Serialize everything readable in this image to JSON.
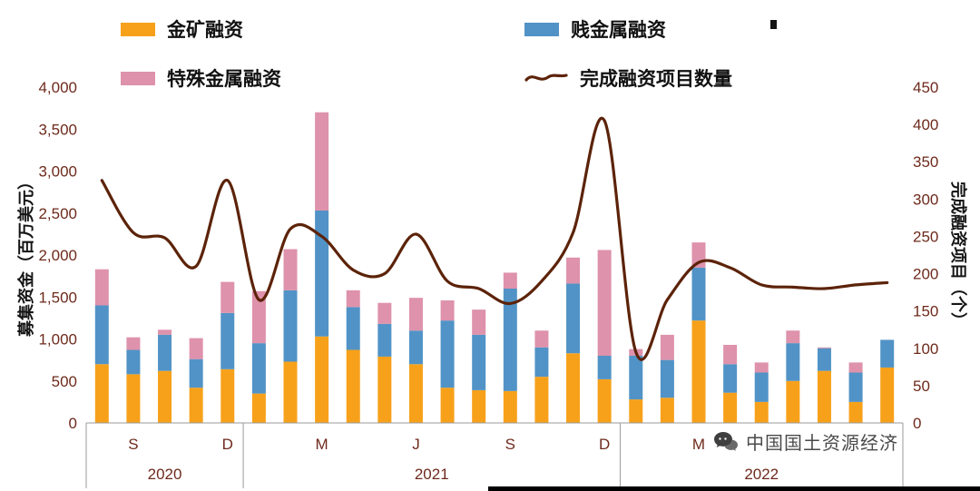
{
  "colors": {
    "gold": "#F7A11A",
    "base_metal": "#5193C6",
    "special_metal": "#DE92AC",
    "line": "#5C2309",
    "tick_text": "#6E2A1C",
    "axis_line": "#9a9a9a",
    "legend_text": "#111111",
    "watermark_text": "#4a4a4a"
  },
  "legend": [
    {
      "label": "金矿融资",
      "color": "#F7A11A",
      "type": "box"
    },
    {
      "label": "贱金属融资",
      "color": "#5193C6",
      "type": "box"
    },
    {
      "label": "特殊金属融资",
      "color": "#DE92AC",
      "type": "box"
    },
    {
      "label": "完成融资项目数量",
      "color": "#5C2309",
      "type": "line"
    }
  ],
  "watermark": {
    "text": "中国国土资源经济"
  },
  "chart_data": {
    "type": "bar+line",
    "x": [
      "2020-08",
      "2020-09",
      "2020-10",
      "2020-11",
      "2020-12",
      "2021-01",
      "2021-02",
      "2021-03",
      "2021-04",
      "2021-05",
      "2021-06",
      "2021-07",
      "2021-08",
      "2021-09",
      "2021-10",
      "2021-11",
      "2021-12",
      "2022-01",
      "2022-02",
      "2022-03",
      "2022-04",
      "2022-05",
      "2022-06",
      "2022-07",
      "2022-08",
      "2022-09"
    ],
    "month_labels": [
      {
        "index": 1,
        "label": "S"
      },
      {
        "index": 4,
        "label": "D"
      },
      {
        "index": 7,
        "label": "M"
      },
      {
        "index": 10,
        "label": "J"
      },
      {
        "index": 13,
        "label": "S"
      },
      {
        "index": 16,
        "label": "D"
      },
      {
        "index": 19,
        "label": "M"
      }
    ],
    "year_groups": [
      {
        "label": "2020",
        "start": 0,
        "end": 4
      },
      {
        "label": "2021",
        "start": 5,
        "end": 16
      },
      {
        "label": "2022",
        "start": 17,
        "end": 25
      }
    ],
    "series": [
      {
        "name": "金矿融资",
        "type": "bar",
        "color": "#F7A11A",
        "values": [
          700,
          580,
          620,
          420,
          640,
          350,
          730,
          1030,
          870,
          790,
          700,
          420,
          390,
          380,
          550,
          830,
          520,
          280,
          300,
          1220,
          360,
          250,
          500,
          620,
          250,
          660
        ]
      },
      {
        "name": "贱金属融资",
        "type": "bar",
        "color": "#5193C6",
        "values": [
          700,
          290,
          430,
          340,
          670,
          600,
          850,
          1500,
          510,
          390,
          400,
          800,
          660,
          1220,
          350,
          830,
          280,
          520,
          450,
          630,
          340,
          350,
          450,
          270,
          350,
          330
        ]
      },
      {
        "name": "特殊金属融资",
        "type": "bar",
        "color": "#DE92AC",
        "values": [
          430,
          150,
          60,
          250,
          370,
          620,
          490,
          1170,
          200,
          250,
          390,
          240,
          300,
          190,
          200,
          310,
          1260,
          80,
          300,
          300,
          230,
          120,
          150,
          10,
          120,
          0
        ]
      },
      {
        "name": "完成融资项目数量",
        "type": "line",
        "axis": "right",
        "color": "#5C2309",
        "values": [
          325,
          255,
          248,
          210,
          325,
          165,
          260,
          250,
          205,
          200,
          253,
          190,
          180,
          160,
          190,
          255,
          405,
          95,
          165,
          215,
          208,
          185,
          182,
          180,
          185,
          188
        ]
      }
    ],
    "left_axis": {
      "label": "募集资金（百万美元）",
      "min": 0,
      "max": 4000,
      "step": 500,
      "ticks": [
        "0",
        "500",
        "1,000",
        "1,500",
        "2,000",
        "2,500",
        "3,000",
        "3,500",
        "4,000"
      ]
    },
    "right_axis": {
      "label": "完成融资项目（个）",
      "min": 0,
      "max": 450,
      "step": 50,
      "ticks": [
        "0",
        "50",
        "100",
        "150",
        "200",
        "250",
        "300",
        "350",
        "400",
        "450"
      ]
    },
    "grid": false,
    "legend_position": "top"
  }
}
